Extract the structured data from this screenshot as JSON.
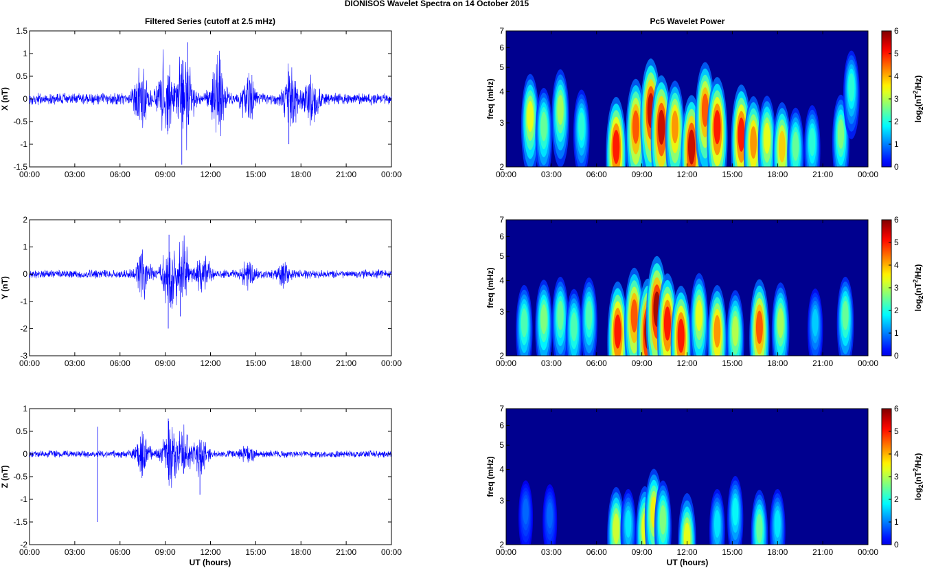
{
  "figure_title": "DIONISOS Wavelet Spectra on 14 October   2015",
  "left_title": "Filtered Series (cutoff at 2.5 mHz)",
  "right_title": "Pc5 Wavelet Power",
  "colors": {
    "trace": "#0000ff",
    "axes": "#000000",
    "background": "#00008f"
  },
  "chart_data": [
    {
      "type": "line",
      "component": "X",
      "ylabel": "X (nT)",
      "xlabel": "",
      "xticks": [
        "00:00",
        "03:00",
        "06:00",
        "09:00",
        "12:00",
        "15:00",
        "18:00",
        "21:00",
        "00:00"
      ],
      "xlim": [
        0,
        24
      ],
      "ylim": [
        -1.5,
        1.5
      ],
      "yticks": [
        "-1.5",
        "-1",
        "-0.5",
        "0",
        "0.5",
        "1",
        "1.5"
      ],
      "noise_base": 0.1,
      "bursts": [
        {
          "t": 7.4,
          "amp": 0.6
        },
        {
          "t": 9.0,
          "amp": 0.75
        },
        {
          "t": 10.3,
          "amp": 0.95
        },
        {
          "t": 12.5,
          "amp": 0.7
        },
        {
          "t": 14.5,
          "amp": 0.45
        },
        {
          "t": 17.3,
          "amp": 0.55
        },
        {
          "t": 18.7,
          "amp": 0.4
        }
      ],
      "spikes": [
        {
          "t": 10.1,
          "v": -1.45
        },
        {
          "t": 10.5,
          "v": 1.25
        },
        {
          "t": 17.2,
          "v": -1.0
        }
      ]
    },
    {
      "type": "heatmap",
      "component": "X",
      "ylabel": "freq (mHz)",
      "xlabel": "",
      "xticks": [
        "00:00",
        "03:00",
        "06:00",
        "09:00",
        "12:00",
        "15:00",
        "18:00",
        "21:00",
        "00:00"
      ],
      "yticks": [
        "2",
        "3",
        "4",
        "5",
        "6",
        "7"
      ],
      "xlim": [
        0,
        24
      ],
      "ylim": [
        2,
        7
      ],
      "yscale": "log",
      "colorbar_label": "log2(nT2/Hz)",
      "colorbar_ticks": [
        "0",
        "1",
        "2",
        "3",
        "4",
        "5",
        "6"
      ],
      "clim": [
        0,
        6
      ],
      "blobs": [
        [
          1.6,
          3.3,
          4.0
        ],
        [
          2.5,
          3.0,
          3.0
        ],
        [
          3.6,
          3.5,
          3.5
        ],
        [
          5.0,
          3.0,
          2.5
        ],
        [
          7.3,
          2.5,
          6.0
        ],
        [
          8.6,
          3.0,
          5.5
        ],
        [
          9.6,
          3.5,
          6.5
        ],
        [
          10.3,
          3.0,
          6.5
        ],
        [
          11.2,
          3.0,
          5.0
        ],
        [
          12.3,
          2.5,
          6.5
        ],
        [
          13.2,
          3.5,
          5.5
        ],
        [
          14.0,
          3.0,
          6.0
        ],
        [
          15.6,
          2.8,
          6.0
        ],
        [
          16.4,
          2.6,
          5.0
        ],
        [
          17.3,
          2.7,
          4.0
        ],
        [
          18.3,
          2.5,
          4.5
        ],
        [
          19.2,
          2.5,
          3.0
        ],
        [
          20.3,
          2.6,
          2.5
        ],
        [
          22.2,
          2.8,
          3.2
        ],
        [
          22.9,
          4.3,
          2.5
        ]
      ]
    },
    {
      "type": "line",
      "component": "Y",
      "ylabel": "Y (nT)",
      "xlabel": "",
      "xticks": [
        "00:00",
        "03:00",
        "06:00",
        "09:00",
        "12:00",
        "15:00",
        "18:00",
        "21:00",
        "00:00"
      ],
      "xlim": [
        0,
        24
      ],
      "ylim": [
        -3,
        2
      ],
      "yticks": [
        "-3",
        "-2",
        "-1",
        "0",
        "1",
        "2"
      ],
      "noise_base": 0.12,
      "bursts": [
        {
          "t": 7.5,
          "amp": 0.7
        },
        {
          "t": 9.3,
          "amp": 1.1
        },
        {
          "t": 10.2,
          "amp": 0.9
        },
        {
          "t": 11.5,
          "amp": 0.6
        },
        {
          "t": 14.5,
          "amp": 0.35
        },
        {
          "t": 16.8,
          "amp": 0.3
        }
      ],
      "spikes": [
        {
          "t": 9.2,
          "v": -2.0
        },
        {
          "t": 9.25,
          "v": 1.45
        },
        {
          "t": 10.0,
          "v": -1.55
        }
      ]
    },
    {
      "type": "heatmap",
      "component": "Y",
      "ylabel": "freq (mHz)",
      "xlabel": "",
      "xticks": [
        "00:00",
        "03:00",
        "06:00",
        "09:00",
        "12:00",
        "15:00",
        "18:00",
        "21:00",
        "00:00"
      ],
      "yticks": [
        "2",
        "3",
        "4",
        "5",
        "6",
        "7"
      ],
      "xlim": [
        0,
        24
      ],
      "ylim": [
        2,
        7
      ],
      "yscale": "log",
      "colorbar_label": "log2(nT2/Hz)",
      "colorbar_ticks": [
        "0",
        "1",
        "2",
        "3",
        "4",
        "5",
        "6"
      ],
      "clim": [
        0,
        6
      ],
      "blobs": [
        [
          1.2,
          2.8,
          2.8
        ],
        [
          2.5,
          2.9,
          3.2
        ],
        [
          3.6,
          3.0,
          3.0
        ],
        [
          4.5,
          2.7,
          2.8
        ],
        [
          5.5,
          3.0,
          2.8
        ],
        [
          7.4,
          2.6,
          6.0
        ],
        [
          8.5,
          3.0,
          5.5
        ],
        [
          9.4,
          2.6,
          6.8
        ],
        [
          10.0,
          3.2,
          6.8
        ],
        [
          10.7,
          2.8,
          6.0
        ],
        [
          11.6,
          2.5,
          6.0
        ],
        [
          12.8,
          3.0,
          4.0
        ],
        [
          14.0,
          2.6,
          5.0
        ],
        [
          15.2,
          2.6,
          3.6
        ],
        [
          16.8,
          2.7,
          5.5
        ],
        [
          18.2,
          2.8,
          3.5
        ],
        [
          20.5,
          2.8,
          1.8
        ],
        [
          22.5,
          3.0,
          3.0
        ]
      ]
    },
    {
      "type": "line",
      "component": "Z",
      "ylabel": "Z (nT)",
      "xlabel": "UT (hours)",
      "xticks": [
        "00:00",
        "03:00",
        "06:00",
        "09:00",
        "12:00",
        "15:00",
        "18:00",
        "21:00",
        "00:00"
      ],
      "xlim": [
        0,
        24
      ],
      "ylim": [
        -2,
        1
      ],
      "yticks": [
        "-2",
        "-1.5",
        "-1",
        "-0.5",
        "0",
        "0.5",
        "1"
      ],
      "noise_base": 0.06,
      "bursts": [
        {
          "t": 7.5,
          "amp": 0.35
        },
        {
          "t": 9.3,
          "amp": 0.55
        },
        {
          "t": 10.2,
          "amp": 0.45
        },
        {
          "t": 11.3,
          "amp": 0.35
        },
        {
          "t": 14.5,
          "amp": 0.15
        }
      ],
      "spikes": [
        {
          "t": 4.5,
          "v": -1.5
        },
        {
          "t": 4.52,
          "v": 0.6
        },
        {
          "t": 9.2,
          "v": 0.78
        },
        {
          "t": 11.3,
          "v": -0.9
        }
      ]
    },
    {
      "type": "heatmap",
      "component": "Z",
      "ylabel": "freq (mHz)",
      "xlabel": "UT (hours)",
      "xticks": [
        "00:00",
        "03:00",
        "06:00",
        "09:00",
        "12:00",
        "15:00",
        "18:00",
        "21:00",
        "00:00"
      ],
      "yticks": [
        "2",
        "3",
        "4",
        "5",
        "6",
        "7"
      ],
      "xlim": [
        0,
        24
      ],
      "ylim": [
        2,
        7
      ],
      "yscale": "log",
      "colorbar_label": "log2(nT2/Hz)",
      "colorbar_ticks": [
        "0",
        "1",
        "2",
        "3",
        "4",
        "5",
        "6"
      ],
      "clim": [
        0,
        6
      ],
      "blobs": [
        [
          7.3,
          2.4,
          3.8
        ],
        [
          8.1,
          2.5,
          2.0
        ],
        [
          9.2,
          2.4,
          4.0
        ],
        [
          9.8,
          2.8,
          4.2
        ],
        [
          10.4,
          2.6,
          3.2
        ],
        [
          12.0,
          2.2,
          4.0
        ],
        [
          14.0,
          2.5,
          2.0
        ],
        [
          15.2,
          2.8,
          2.2
        ],
        [
          16.8,
          2.4,
          3.0
        ],
        [
          18.0,
          2.5,
          2.0
        ],
        [
          1.3,
          2.8,
          1.0
        ],
        [
          2.9,
          2.7,
          1.0
        ]
      ]
    }
  ]
}
